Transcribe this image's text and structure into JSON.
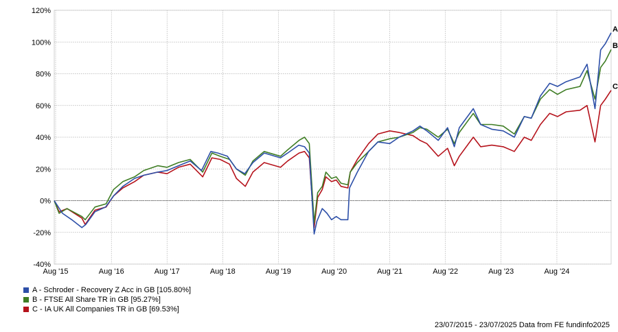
{
  "chart_data": {
    "type": "line",
    "title": "",
    "xlabel": "",
    "ylabel": "",
    "ylim": [
      -40,
      120
    ],
    "y_ticks": [
      -40,
      -20,
      0,
      20,
      40,
      60,
      80,
      100,
      120
    ],
    "y_tick_labels": [
      "-40%",
      "-20%",
      "0%",
      "20%",
      "40%",
      "60%",
      "80%",
      "100%",
      "120%"
    ],
    "x_range": [
      "2015-07-23",
      "2025-07-23"
    ],
    "x_ticks": [
      "2015-08-01",
      "2016-08-01",
      "2017-08-01",
      "2018-08-01",
      "2019-08-01",
      "2020-08-01",
      "2021-08-01",
      "2022-08-01",
      "2023-08-01",
      "2024-08-01"
    ],
    "x_tick_labels": [
      "Aug '15",
      "Aug '16",
      "Aug '17",
      "Aug '18",
      "Aug '19",
      "Aug '20",
      "Aug '21",
      "Aug '22",
      "Aug '23",
      "Aug '24"
    ],
    "grid": true,
    "zero_line": true,
    "legend_position": "bottom-left",
    "series": [
      {
        "name": "A - Schroder - Recovery Z Acc in GB [105.80%]",
        "tag": "A",
        "color": "#2d4fa8",
        "points": [
          [
            "2015-07-23",
            0
          ],
          [
            "2015-09-15",
            -8
          ],
          [
            "2015-11-15",
            -12
          ],
          [
            "2016-01-20",
            -17
          ],
          [
            "2016-02-15",
            -15
          ],
          [
            "2016-04-15",
            -7
          ],
          [
            "2016-06-24",
            -4
          ],
          [
            "2016-08-15",
            3
          ],
          [
            "2016-10-15",
            9
          ],
          [
            "2016-12-31",
            14
          ],
          [
            "2017-03-01",
            16
          ],
          [
            "2017-06-01",
            18
          ],
          [
            "2017-08-01",
            19
          ],
          [
            "2017-10-15",
            22
          ],
          [
            "2017-12-31",
            25
          ],
          [
            "2018-03-15",
            19
          ],
          [
            "2018-05-15",
            31
          ],
          [
            "2018-07-01",
            30
          ],
          [
            "2018-09-01",
            28
          ],
          [
            "2018-10-30",
            20
          ],
          [
            "2018-12-24",
            17
          ],
          [
            "2019-02-15",
            24
          ],
          [
            "2019-05-01",
            30
          ],
          [
            "2019-08-15",
            27
          ],
          [
            "2019-10-01",
            30
          ],
          [
            "2019-12-13",
            35
          ],
          [
            "2020-01-20",
            34
          ],
          [
            "2020-02-20",
            30
          ],
          [
            "2020-03-23",
            -21
          ],
          [
            "2020-04-10",
            -13
          ],
          [
            "2020-05-15",
            -5
          ],
          [
            "2020-06-15",
            -8
          ],
          [
            "2020-07-15",
            -12
          ],
          [
            "2020-08-15",
            -10
          ],
          [
            "2020-09-15",
            -12
          ],
          [
            "2020-10-30",
            -12
          ],
          [
            "2020-11-10",
            8
          ],
          [
            "2020-12-31",
            18
          ],
          [
            "2021-03-15",
            31
          ],
          [
            "2021-05-15",
            37
          ],
          [
            "2021-08-01",
            36
          ],
          [
            "2021-10-01",
            40
          ],
          [
            "2021-12-31",
            44
          ],
          [
            "2022-02-15",
            47
          ],
          [
            "2022-04-01",
            44
          ],
          [
            "2022-06-15",
            38
          ],
          [
            "2022-08-15",
            46
          ],
          [
            "2022-09-28",
            34
          ],
          [
            "2022-10-31",
            46
          ],
          [
            "2023-01-31",
            58
          ],
          [
            "2023-03-20",
            48
          ],
          [
            "2023-06-01",
            45
          ],
          [
            "2023-08-15",
            44
          ],
          [
            "2023-10-27",
            40
          ],
          [
            "2023-12-31",
            53
          ],
          [
            "2024-02-15",
            52
          ],
          [
            "2024-04-15",
            66
          ],
          [
            "2024-06-15",
            74
          ],
          [
            "2024-08-05",
            72
          ],
          [
            "2024-10-01",
            75
          ],
          [
            "2024-12-31",
            78
          ],
          [
            "2025-02-15",
            86
          ],
          [
            "2025-04-08",
            58
          ],
          [
            "2025-05-15",
            95
          ],
          [
            "2025-06-15",
            99
          ],
          [
            "2025-07-23",
            105.8
          ]
        ]
      },
      {
        "name": "B - FTSE All Share TR in GB [95.27%]",
        "tag": "B",
        "color": "#3f7d24",
        "points": [
          [
            "2015-07-23",
            0
          ],
          [
            "2015-08-24",
            -8
          ],
          [
            "2015-10-15",
            -5
          ],
          [
            "2016-01-20",
            -10
          ],
          [
            "2016-02-11",
            -12
          ],
          [
            "2016-04-15",
            -4
          ],
          [
            "2016-06-27",
            -2
          ],
          [
            "2016-08-15",
            7
          ],
          [
            "2016-10-15",
            12
          ],
          [
            "2016-12-31",
            15
          ],
          [
            "2017-03-01",
            19
          ],
          [
            "2017-06-01",
            22
          ],
          [
            "2017-08-01",
            21
          ],
          [
            "2017-10-15",
            24
          ],
          [
            "2017-12-31",
            26
          ],
          [
            "2018-03-23",
            18
          ],
          [
            "2018-05-22",
            30
          ],
          [
            "2018-07-15",
            28
          ],
          [
            "2018-09-15",
            26
          ],
          [
            "2018-10-30",
            20
          ],
          [
            "2018-12-27",
            16
          ],
          [
            "2019-02-15",
            25
          ],
          [
            "2019-04-30",
            31
          ],
          [
            "2019-08-15",
            28
          ],
          [
            "2019-10-01",
            32
          ],
          [
            "2019-12-15",
            38
          ],
          [
            "2020-01-20",
            40
          ],
          [
            "2020-02-20",
            36
          ],
          [
            "2020-03-23",
            -14
          ],
          [
            "2020-04-15",
            5
          ],
          [
            "2020-05-15",
            9
          ],
          [
            "2020-06-08",
            18
          ],
          [
            "2020-07-15",
            14
          ],
          [
            "2020-08-15",
            15
          ],
          [
            "2020-09-15",
            11
          ],
          [
            "2020-10-30",
            10
          ],
          [
            "2020-11-15",
            18
          ],
          [
            "2020-12-31",
            24
          ],
          [
            "2021-03-15",
            31
          ],
          [
            "2021-05-15",
            37
          ],
          [
            "2021-08-01",
            39
          ],
          [
            "2021-10-01",
            40
          ],
          [
            "2021-12-31",
            43
          ],
          [
            "2022-02-15",
            46
          ],
          [
            "2022-04-01",
            45
          ],
          [
            "2022-06-15",
            40
          ],
          [
            "2022-08-15",
            45
          ],
          [
            "2022-09-28",
            36
          ],
          [
            "2022-10-31",
            43
          ],
          [
            "2023-01-31",
            55
          ],
          [
            "2023-03-20",
            48
          ],
          [
            "2023-06-01",
            48
          ],
          [
            "2023-08-15",
            47
          ],
          [
            "2023-10-27",
            42
          ],
          [
            "2023-12-31",
            53
          ],
          [
            "2024-02-15",
            52
          ],
          [
            "2024-04-15",
            64
          ],
          [
            "2024-06-15",
            70
          ],
          [
            "2024-08-05",
            67
          ],
          [
            "2024-10-01",
            70
          ],
          [
            "2024-12-31",
            72
          ],
          [
            "2025-02-15",
            82
          ],
          [
            "2025-04-08",
            64
          ],
          [
            "2025-05-15",
            84
          ],
          [
            "2025-06-15",
            88
          ],
          [
            "2025-07-23",
            95.27
          ]
        ]
      },
      {
        "name": "C - IA UK All Companies TR in GB [69.53%]",
        "tag": "C",
        "color": "#b5121b",
        "points": [
          [
            "2015-07-23",
            0
          ],
          [
            "2015-08-24",
            -7
          ],
          [
            "2015-10-15",
            -5
          ],
          [
            "2016-01-20",
            -11
          ],
          [
            "2016-02-11",
            -15
          ],
          [
            "2016-04-15",
            -6
          ],
          [
            "2016-06-27",
            -4
          ],
          [
            "2016-08-15",
            3
          ],
          [
            "2016-10-15",
            8
          ],
          [
            "2016-12-31",
            12
          ],
          [
            "2017-03-01",
            16
          ],
          [
            "2017-06-01",
            18
          ],
          [
            "2017-08-01",
            17
          ],
          [
            "2017-10-15",
            21
          ],
          [
            "2017-12-31",
            23
          ],
          [
            "2018-03-23",
            15
          ],
          [
            "2018-05-22",
            27
          ],
          [
            "2018-07-15",
            26
          ],
          [
            "2018-09-15",
            23
          ],
          [
            "2018-10-30",
            14
          ],
          [
            "2018-12-27",
            9
          ],
          [
            "2019-02-15",
            18
          ],
          [
            "2019-04-30",
            24
          ],
          [
            "2019-08-15",
            21
          ],
          [
            "2019-10-01",
            25
          ],
          [
            "2019-12-15",
            30
          ],
          [
            "2020-01-20",
            31
          ],
          [
            "2020-02-20",
            27
          ],
          [
            "2020-03-23",
            -17
          ],
          [
            "2020-04-15",
            2
          ],
          [
            "2020-05-15",
            7
          ],
          [
            "2020-06-08",
            15
          ],
          [
            "2020-07-15",
            12
          ],
          [
            "2020-08-15",
            13
          ],
          [
            "2020-09-15",
            9
          ],
          [
            "2020-10-30",
            8
          ],
          [
            "2020-11-15",
            18
          ],
          [
            "2020-12-31",
            26
          ],
          [
            "2021-03-15",
            36
          ],
          [
            "2021-05-15",
            42
          ],
          [
            "2021-08-01",
            44
          ],
          [
            "2021-10-01",
            43
          ],
          [
            "2021-12-31",
            41
          ],
          [
            "2022-02-15",
            38
          ],
          [
            "2022-04-01",
            36
          ],
          [
            "2022-06-15",
            28
          ],
          [
            "2022-08-15",
            33
          ],
          [
            "2022-09-28",
            22
          ],
          [
            "2022-10-31",
            28
          ],
          [
            "2023-01-31",
            40
          ],
          [
            "2023-03-20",
            34
          ],
          [
            "2023-06-01",
            35
          ],
          [
            "2023-08-15",
            34
          ],
          [
            "2023-10-27",
            31
          ],
          [
            "2023-12-31",
            40
          ],
          [
            "2024-02-15",
            38
          ],
          [
            "2024-04-15",
            48
          ],
          [
            "2024-06-15",
            55
          ],
          [
            "2024-08-05",
            53
          ],
          [
            "2024-10-01",
            56
          ],
          [
            "2024-12-31",
            57
          ],
          [
            "2025-02-15",
            60
          ],
          [
            "2025-04-08",
            37
          ],
          [
            "2025-05-15",
            60
          ],
          [
            "2025-06-15",
            64
          ],
          [
            "2025-07-23",
            69.53
          ]
        ]
      }
    ]
  },
  "footer": {
    "date_range": "23/07/2015 - 23/07/2025 Data from FE fundinfo2025"
  }
}
